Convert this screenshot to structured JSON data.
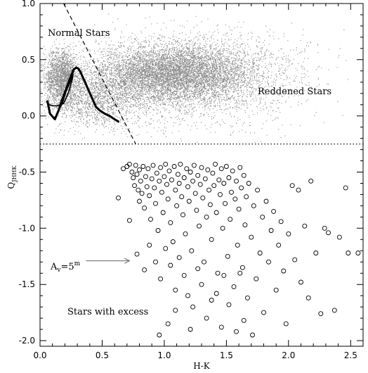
{
  "chart_data": {
    "type": "scatter",
    "title": "",
    "xlabel": "H-K",
    "ylabel": "Q",
    "ylabel_subscript": "JHHK",
    "xlim": [
      0.0,
      2.6
    ],
    "ylim": [
      -2.05,
      1.0
    ],
    "x_ticks": [
      "0.0",
      "0.5",
      "1.0",
      "1.5",
      "2.0",
      "2.5"
    ],
    "y_ticks": [
      "1.0",
      "0.5",
      "0.0",
      "-0.5",
      "-1.0",
      "-1.5",
      "-2.0"
    ],
    "grid": false,
    "annotations": {
      "normal": "Normal Stars",
      "reddened": "Reddened Stars",
      "excess": "Stars with excess",
      "av_label": "A",
      "av_sub": "v",
      "av_eq": "=5",
      "av_sup": "m"
    },
    "threshold_line": {
      "y": -0.25,
      "style": "dotted"
    },
    "reddening_line": {
      "points": [
        [
          0.19,
          1.0
        ],
        [
          0.77,
          -0.25
        ]
      ],
      "style": "dashed"
    },
    "reddening_vector": {
      "from": [
        0.37,
        -1.29
      ],
      "to": [
        0.72,
        -1.29
      ]
    },
    "main_sequence_curve": [
      [
        0.06,
        0.13
      ],
      [
        0.08,
        0.02
      ],
      [
        0.12,
        -0.03
      ],
      [
        0.15,
        0.05
      ],
      [
        0.17,
        0.12
      ],
      [
        0.19,
        0.18
      ],
      [
        0.21,
        0.24
      ],
      [
        0.23,
        0.3
      ],
      [
        0.25,
        0.36
      ],
      [
        0.27,
        0.41
      ],
      [
        0.29,
        0.43
      ],
      [
        0.31,
        0.42
      ],
      [
        0.33,
        0.38
      ],
      [
        0.35,
        0.33
      ],
      [
        0.37,
        0.28
      ],
      [
        0.39,
        0.23
      ],
      [
        0.41,
        0.18
      ],
      [
        0.43,
        0.13
      ],
      [
        0.45,
        0.08
      ],
      [
        0.48,
        0.05
      ],
      [
        0.52,
        0.02
      ],
      [
        0.56,
        0.0
      ],
      [
        0.6,
        -0.03
      ],
      [
        0.63,
        -0.05
      ]
    ],
    "giant_branch_curve": [
      [
        0.05,
        0.13
      ],
      [
        0.07,
        0.1
      ],
      [
        0.1,
        0.09
      ],
      [
        0.14,
        0.09
      ],
      [
        0.19,
        0.11
      ],
      [
        0.23,
        0.21
      ],
      [
        0.26,
        0.33
      ],
      [
        0.27,
        0.42
      ],
      [
        0.25,
        0.32
      ],
      [
        0.21,
        0.22
      ],
      [
        0.18,
        0.11
      ],
      [
        0.15,
        0.05
      ],
      [
        0.13,
        0.0
      ],
      [
        0.11,
        -0.02
      ]
    ],
    "series": [
      {
        "marker": "open-circle",
        "points": [
          [
            0.63,
            -0.73
          ],
          [
            0.67,
            -0.47
          ],
          [
            0.7,
            -0.45
          ],
          [
            0.72,
            -0.43
          ],
          [
            0.74,
            -0.5
          ],
          [
            0.75,
            -0.55
          ],
          [
            0.76,
            -0.62
          ],
          [
            0.77,
            -0.44
          ],
          [
            0.78,
            -0.52
          ],
          [
            0.79,
            -0.66
          ],
          [
            0.8,
            -0.76
          ],
          [
            0.8,
            -0.48
          ],
          [
            0.81,
            -0.58
          ],
          [
            0.82,
            -0.69
          ],
          [
            0.83,
            -0.45
          ],
          [
            0.84,
            -0.82
          ],
          [
            0.85,
            -0.54
          ],
          [
            0.86,
            -0.63
          ],
          [
            0.87,
            -0.47
          ],
          [
            0.88,
            -0.71
          ],
          [
            0.89,
            -0.92
          ],
          [
            0.9,
            -0.56
          ],
          [
            0.91,
            -0.44
          ],
          [
            0.92,
            -0.64
          ],
          [
            0.93,
            -0.78
          ],
          [
            0.94,
            -0.51
          ],
          [
            0.95,
            -1.02
          ],
          [
            0.96,
            -0.58
          ],
          [
            0.97,
            -0.46
          ],
          [
            0.98,
            -0.68
          ],
          [
            0.99,
            -0.86
          ],
          [
            1.0,
            -0.54
          ],
          [
            1.01,
            -0.43
          ],
          [
            1.02,
            -0.61
          ],
          [
            1.03,
            -0.74
          ],
          [
            1.04,
            -0.49
          ],
          [
            1.05,
            -0.95
          ],
          [
            1.06,
            -0.57
          ],
          [
            1.07,
            -1.12
          ],
          [
            1.08,
            -0.45
          ],
          [
            1.09,
            -0.66
          ],
          [
            1.1,
            -0.8
          ],
          [
            1.11,
            -0.52
          ],
          [
            1.12,
            -0.6
          ],
          [
            1.13,
            -0.43
          ],
          [
            1.14,
            -0.72
          ],
          [
            1.15,
            -0.88
          ],
          [
            1.16,
            -0.55
          ],
          [
            1.17,
            -1.05
          ],
          [
            1.18,
            -0.47
          ],
          [
            1.19,
            -0.63
          ],
          [
            1.2,
            -0.76
          ],
          [
            1.21,
            -0.5
          ],
          [
            1.22,
            -1.2
          ],
          [
            1.23,
            -0.58
          ],
          [
            1.24,
            -0.44
          ],
          [
            1.25,
            -0.69
          ],
          [
            1.26,
            -0.84
          ],
          [
            1.27,
            -0.53
          ],
          [
            1.28,
            -0.98
          ],
          [
            1.29,
            -0.61
          ],
          [
            1.3,
            -0.46
          ],
          [
            1.31,
            -0.73
          ],
          [
            1.32,
            -1.3
          ],
          [
            1.33,
            -0.56
          ],
          [
            1.34,
            -0.9
          ],
          [
            1.35,
            -0.48
          ],
          [
            1.36,
            -0.66
          ],
          [
            1.37,
            -0.79
          ],
          [
            1.38,
            -1.1
          ],
          [
            1.39,
            -0.51
          ],
          [
            1.4,
            -0.62
          ],
          [
            1.41,
            -0.43
          ],
          [
            1.42,
            -0.86
          ],
          [
            1.43,
            -1.4
          ],
          [
            1.44,
            -0.57
          ],
          [
            1.45,
            -0.7
          ],
          [
            1.46,
            -0.47
          ],
          [
            1.47,
            -1.0
          ],
          [
            1.48,
            -0.6
          ],
          [
            1.49,
            -0.78
          ],
          [
            1.5,
            -0.45
          ],
          [
            1.51,
            -1.25
          ],
          [
            1.52,
            -0.55
          ],
          [
            1.53,
            -0.92
          ],
          [
            1.54,
            -0.68
          ],
          [
            1.55,
            -0.49
          ],
          [
            1.56,
            -1.52
          ],
          [
            1.57,
            -0.74
          ],
          [
            1.58,
            -0.58
          ],
          [
            1.59,
            -1.15
          ],
          [
            1.6,
            -0.83
          ],
          [
            1.61,
            -0.46
          ],
          [
            1.62,
            -0.64
          ],
          [
            1.63,
            -1.35
          ],
          [
            1.64,
            -0.53
          ],
          [
            1.65,
            -0.97
          ],
          [
            1.66,
            -0.72
          ],
          [
            1.67,
            -1.62
          ],
          [
            1.68,
            -0.6
          ],
          [
            1.7,
            -1.08
          ],
          [
            1.72,
            -0.8
          ],
          [
            1.74,
            -1.45
          ],
          [
            1.75,
            -0.66
          ],
          [
            1.77,
            -1.22
          ],
          [
            1.79,
            -0.9
          ],
          [
            1.8,
            -1.75
          ],
          [
            1.82,
            -0.76
          ],
          [
            1.84,
            -1.3
          ],
          [
            1.86,
            -1.02
          ],
          [
            1.88,
            -0.85
          ],
          [
            1.9,
            -1.55
          ],
          [
            1.92,
            -1.15
          ],
          [
            1.94,
            -0.94
          ],
          [
            1.96,
            -1.38
          ],
          [
            1.98,
            -1.85
          ],
          [
            2.0,
            -1.05
          ],
          [
            2.03,
            -0.62
          ],
          [
            2.05,
            -1.28
          ],
          [
            2.08,
            -0.66
          ],
          [
            2.1,
            -1.48
          ],
          [
            2.13,
            -0.98
          ],
          [
            2.16,
            -1.62
          ],
          [
            2.18,
            -0.58
          ],
          [
            2.22,
            -1.22
          ],
          [
            2.26,
            -1.76
          ],
          [
            2.29,
            -1.0
          ],
          [
            2.32,
            -1.04
          ],
          [
            2.37,
            -1.73
          ],
          [
            2.41,
            -1.08
          ],
          [
            2.46,
            -0.64
          ],
          [
            2.48,
            -1.22
          ],
          [
            2.56,
            -1.22
          ],
          [
            0.72,
            -0.93
          ],
          [
            0.78,
            -1.23
          ],
          [
            0.84,
            -1.37
          ],
          [
            0.88,
            -1.15
          ],
          [
            0.93,
            -1.3
          ],
          [
            0.97,
            -1.45
          ],
          [
            1.01,
            -1.18
          ],
          [
            1.05,
            -1.33
          ],
          [
            1.09,
            -1.55
          ],
          [
            1.12,
            -1.26
          ],
          [
            1.16,
            -1.42
          ],
          [
            1.19,
            -1.6
          ],
          [
            1.23,
            -1.7
          ],
          [
            1.27,
            -1.36
          ],
          [
            1.3,
            -1.5
          ],
          [
            1.34,
            -1.8
          ],
          [
            1.38,
            -1.64
          ],
          [
            1.42,
            -1.58
          ],
          [
            1.46,
            -1.88
          ],
          [
            1.52,
            -1.68
          ],
          [
            1.58,
            -1.92
          ],
          [
            1.64,
            -1.82
          ],
          [
            1.71,
            -1.95
          ],
          [
            1.03,
            -1.85
          ],
          [
            0.96,
            -1.95
          ],
          [
            1.09,
            -1.73
          ],
          [
            1.21,
            -1.9
          ],
          [
            1.48,
            -1.42
          ],
          [
            1.61,
            -1.4
          ]
        ]
      }
    ]
  }
}
